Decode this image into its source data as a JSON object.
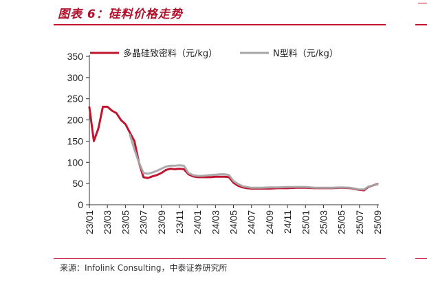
{
  "header": {
    "title": "图表 6：硅料价格走势"
  },
  "footer": {
    "source": "来源：Infolink Consulting，中泰证券研究所"
  },
  "colors": {
    "accent": "#c0142f",
    "series_polysilicon": "#c0142f",
    "series_ntype": "#a6a6a6"
  },
  "chart_data": {
    "type": "line",
    "title": "",
    "xlabel": "",
    "ylabel": "",
    "ylim": [
      0,
      350
    ],
    "yticks": [
      0,
      50,
      100,
      150,
      200,
      250,
      300,
      350
    ],
    "x_tick_labels": [
      "23/01",
      "23/03",
      "23/05",
      "23/07",
      "23/09",
      "23/11",
      "24/01",
      "24/03",
      "24/05",
      "24/07",
      "24/09",
      "24/11",
      "25/01",
      "25/03",
      "25/05",
      "25/07",
      "25/09"
    ],
    "grid": false,
    "legend_position": "top",
    "series": [
      {
        "name": "多晶硅致密料（元/kg）",
        "color": "#c0142f",
        "x": [
          "23/01",
          "23/01.5",
          "23/02",
          "23/02.5",
          "23/03",
          "23/03.5",
          "23/04",
          "23/04.5",
          "23/05",
          "23/05.5",
          "23/06",
          "23/06.5",
          "23/07",
          "23/07.5",
          "23/08",
          "23/08.5",
          "23/09",
          "23/09.5",
          "23/10",
          "23/10.5",
          "23/11",
          "23/11.5",
          "23/12",
          "23/12.5",
          "24/01",
          "24/01.5",
          "24/02",
          "24/02.5",
          "24/03",
          "24/03.5",
          "24/04",
          "24/04.5",
          "24/05",
          "24/05.5",
          "24/06",
          "24/06.5",
          "24/07",
          "24/08",
          "24/09",
          "24/10",
          "24/11",
          "24/12",
          "25/01",
          "25/02",
          "25/03",
          "25/04",
          "25/05",
          "25/06",
          "25/07",
          "25/07.5",
          "25/08",
          "25/09"
        ],
        "values": [
          230,
          150,
          180,
          231,
          231,
          222,
          216,
          200,
          190,
          170,
          150,
          100,
          65,
          63,
          67,
          70,
          75,
          82,
          85,
          84,
          85,
          84,
          72,
          67,
          65,
          65,
          65,
          65,
          66,
          66,
          66,
          65,
          52,
          45,
          41,
          39,
          38,
          38,
          38,
          39,
          39,
          40,
          40,
          39,
          39,
          39,
          40,
          39,
          35,
          34,
          42,
          49
        ]
      },
      {
        "name": "N型料（元/kg）",
        "color": "#a6a6a6",
        "x": [
          "23/05.5",
          "23/06",
          "23/06.5",
          "23/07",
          "23/07.5",
          "23/08",
          "23/08.5",
          "23/09",
          "23/09.5",
          "23/10",
          "23/10.5",
          "23/11",
          "23/11.5",
          "23/12",
          "23/12.5",
          "24/01",
          "24/01.5",
          "24/02",
          "24/02.5",
          "24/03",
          "24/03.5",
          "24/04",
          "24/04.5",
          "24/05",
          "24/05.5",
          "24/06",
          "24/06.5",
          "24/07",
          "24/08",
          "24/09",
          "24/10",
          "24/11",
          "24/12",
          "25/01",
          "25/02",
          "25/03",
          "25/04",
          "25/05",
          "25/06",
          "25/07",
          "25/07.5",
          "25/08",
          "25/09"
        ],
        "values": [
          165,
          130,
          100,
          75,
          73,
          76,
          80,
          85,
          90,
          92,
          92,
          93,
          92,
          75,
          70,
          68,
          68,
          69,
          70,
          71,
          72,
          72,
          70,
          56,
          49,
          44,
          42,
          40,
          40,
          41,
          41,
          42,
          42,
          42,
          40,
          40,
          40,
          41,
          40,
          36,
          36,
          43,
          48
        ]
      }
    ]
  }
}
